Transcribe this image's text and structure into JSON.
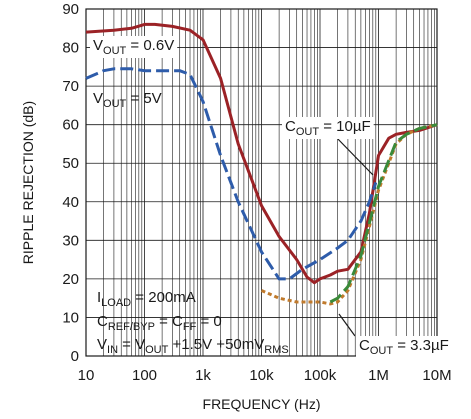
{
  "chart_data": {
    "type": "line",
    "xlabel": "FREQUENCY (Hz)",
    "ylabel": "RIPPLE REJECTION (dB)",
    "x_scale": "log",
    "xlim": [
      10,
      10000000
    ],
    "ylim": [
      0,
      90
    ],
    "grid": true,
    "x_ticks": [
      {
        "value": 10,
        "label": "10"
      },
      {
        "value": 100,
        "label": "100"
      },
      {
        "value": 1000,
        "label": "1k"
      },
      {
        "value": 10000,
        "label": "10k"
      },
      {
        "value": 100000,
        "label": "100k"
      },
      {
        "value": 1000000,
        "label": "1M"
      },
      {
        "value": 10000000,
        "label": "10M"
      }
    ],
    "y_ticks": [
      0,
      10,
      20,
      30,
      40,
      50,
      60,
      70,
      80,
      90
    ],
    "series": [
      {
        "name": "VOUT = 0.6V",
        "color": "#9b2226",
        "style": "solid",
        "x": [
          10,
          30,
          60,
          100,
          150,
          300,
          600,
          1000,
          2000,
          4000,
          10000,
          20000,
          40000,
          60000,
          80000,
          100000,
          150000,
          200000,
          300000,
          500000,
          700000,
          1000000,
          1500000,
          2000000,
          3000000,
          5000000,
          10000000
        ],
        "y": [
          84,
          84.5,
          85,
          86,
          86,
          85.5,
          84.5,
          82,
          72,
          55,
          39,
          31,
          25,
          20.5,
          19,
          20,
          21,
          22,
          22.5,
          27,
          37,
          52,
          56.5,
          57.5,
          58,
          58.5,
          60
        ]
      },
      {
        "name": "VOUT = 5V",
        "color": "#2e5caa",
        "style": "dashed",
        "x": [
          10,
          20,
          30,
          60,
          100,
          200,
          400,
          600,
          1000,
          2000,
          4000,
          10000,
          20000,
          30000,
          50000,
          100000,
          200000,
          300000,
          500000,
          700000,
          900000
        ],
        "y": [
          72,
          74,
          74.5,
          74.5,
          74,
          74,
          74,
          73,
          66,
          52,
          40,
          27,
          20,
          20,
          22.5,
          25,
          28,
          30,
          35,
          40,
          45
        ]
      },
      {
        "name": "COUT = 3.3µF",
        "color": "#c07a2c",
        "style": "dotted",
        "x": [
          10000,
          20000,
          40000,
          60000,
          100000,
          150000,
          200000,
          300000,
          500000,
          800000,
          1000000,
          2000000,
          3000000,
          5000000,
          10000000
        ],
        "y": [
          17,
          15,
          14,
          14,
          14,
          13.5,
          14,
          17,
          25,
          37,
          43,
          55,
          57.5,
          59,
          60
        ]
      },
      {
        "name": "COUT = 3.3µF (green)",
        "color": "#3a8a3a",
        "style": "dashed",
        "x": [
          150000,
          200000,
          300000,
          500000,
          800000,
          1000000,
          2000000,
          3000000,
          5000000,
          10000000
        ],
        "y": [
          14,
          15,
          18,
          26,
          38,
          44,
          55.5,
          57.5,
          59,
          60
        ]
      }
    ],
    "annotations": [
      {
        "text": "V",
        "sub": "OUT",
        "rest": " = 0.6V"
      },
      {
        "text": "V",
        "sub": "OUT",
        "rest": " = 5V"
      },
      {
        "text": "C",
        "sub": "OUT",
        "rest": " = 10µF"
      },
      {
        "text": "C",
        "sub": "OUT",
        "rest": " = 3.3µF"
      },
      {
        "text": "I",
        "sub": "LOAD",
        "rest": " = 200mA"
      },
      {
        "text": "C",
        "sub": "REF/BYP",
        "rest": " = C",
        "sub2": "FF",
        "rest2": " = 0"
      },
      {
        "text": "V",
        "sub": "IN",
        "rest": " = V",
        "sub2": "OUT",
        "rest2": " +1.5V +50mV",
        "sub3": "RMS"
      }
    ]
  }
}
